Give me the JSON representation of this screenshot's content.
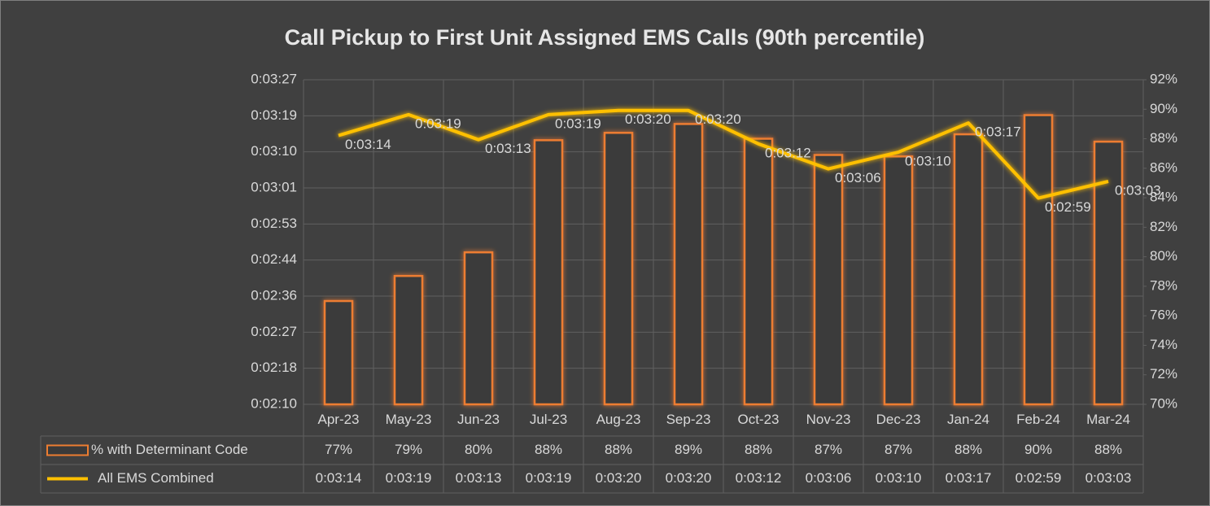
{
  "chart_data": {
    "type": "bar",
    "title": "Call Pickup to First Unit Assigned EMS Calls (90th percentile)",
    "categories": [
      "Apr-23",
      "May-23",
      "Jun-23",
      "Jul-23",
      "Aug-23",
      "Sep-23",
      "Oct-23",
      "Nov-23",
      "Dec-23",
      "Jan-24",
      "Feb-24",
      "Mar-24"
    ],
    "series": [
      {
        "name": "% with Determinant Code",
        "type": "bar",
        "axis": "y2",
        "color": "#ed7d31",
        "values": [
          77.0,
          78.7,
          80.3,
          87.9,
          88.4,
          89.0,
          88.0,
          86.9,
          86.8,
          88.3,
          89.6,
          87.8
        ],
        "value_labels": [
          "77%",
          "79%",
          "80%",
          "88%",
          "88%",
          "89%",
          "88%",
          "87%",
          "87%",
          "88%",
          "90%",
          "88%"
        ]
      },
      {
        "name": "All EMS Combined",
        "type": "line",
        "color": "#ffc000",
        "values": [
          194,
          199,
          193,
          199,
          200,
          200,
          192,
          186,
          190,
          197,
          179,
          183
        ],
        "value_labels": [
          "0:03:14",
          "0:03:19",
          "0:03:13",
          "0:03:19",
          "0:03:20",
          "0:03:20",
          "0:03:12",
          "0:03:06",
          "0:03:10",
          "0:03:17",
          "0:02:59",
          "0:03:03"
        ]
      }
    ],
    "ylim": [
      129.6,
      207.36
    ],
    "yticks": [
      {
        "value": 129.6,
        "label": "0:02:10"
      },
      {
        "value": 138.24,
        "label": "0:02:18"
      },
      {
        "value": 146.88,
        "label": "0:02:27"
      },
      {
        "value": 155.52,
        "label": "0:02:36"
      },
      {
        "value": 164.16,
        "label": "0:02:44"
      },
      {
        "value": 172.8,
        "label": "0:02:53"
      },
      {
        "value": 181.44,
        "label": "0:03:01"
      },
      {
        "value": 190.08,
        "label": "0:03:10"
      },
      {
        "value": 198.72,
        "label": "0:03:19"
      },
      {
        "value": 207.36,
        "label": "0:03:27"
      }
    ],
    "y2lim": [
      70,
      92
    ],
    "y2ticks": [
      {
        "value": 70,
        "label": "70%"
      },
      {
        "value": 72,
        "label": "72%"
      },
      {
        "value": 74,
        "label": "74%"
      },
      {
        "value": 76,
        "label": "76%"
      },
      {
        "value": 78,
        "label": "78%"
      },
      {
        "value": 80,
        "label": "80%"
      },
      {
        "value": 82,
        "label": "82%"
      },
      {
        "value": 84,
        "label": "84%"
      },
      {
        "value": 86,
        "label": "86%"
      },
      {
        "value": 88,
        "label": "88%"
      },
      {
        "value": 90,
        "label": "90%"
      },
      {
        "value": 92,
        "label": "92%"
      }
    ],
    "grid": true
  }
}
